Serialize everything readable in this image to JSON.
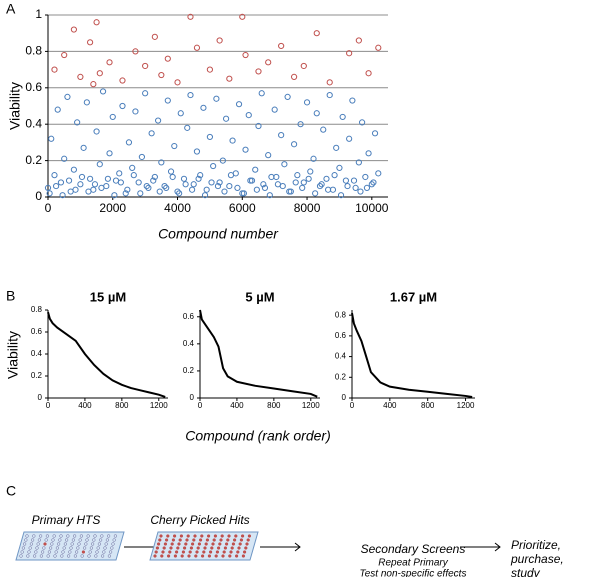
{
  "panel_labels": [
    "A",
    "B",
    "C"
  ],
  "chart_data": [
    {
      "type": "scatter",
      "y_label": "Viability",
      "x_label": "Compound number",
      "xlim": [
        0,
        10500
      ],
      "xticks": [
        0,
        2000,
        4000,
        6000,
        8000,
        10000
      ],
      "ylim": [
        0,
        1
      ],
      "yticks": [
        0,
        0.2,
        0.4,
        0.6,
        0.8,
        1
      ],
      "grid": true,
      "series": [
        {
          "color": "#4a7ebb",
          "x": [
            0,
            100,
            200,
            300,
            400,
            500,
            600,
            700,
            800,
            900,
            1000,
            1100,
            1200,
            1300,
            1400,
            1500,
            1600,
            1700,
            1800,
            1900,
            2000,
            2100,
            2200,
            2300,
            2400,
            2500,
            2600,
            2700,
            2800,
            2900,
            3000,
            3100,
            3200,
            3300,
            3400,
            3500,
            3600,
            3700,
            3800,
            3900,
            4000,
            4100,
            4200,
            4300,
            4400,
            4500,
            4600,
            4700,
            4800,
            4900,
            5000,
            5100,
            5200,
            5300,
            5400,
            5500,
            5600,
            5700,
            5800,
            5900,
            6000,
            6100,
            6200,
            6300,
            6400,
            6500,
            6600,
            6700,
            6800,
            6900,
            7000,
            7100,
            7200,
            7300,
            7400,
            7500,
            7600,
            7700,
            7800,
            7900,
            8000,
            8100,
            8200,
            8300,
            8400,
            8500,
            8600,
            8700,
            8800,
            8900,
            9000,
            9100,
            9200,
            9300,
            9400,
            9500,
            9600,
            9700,
            9800,
            9900,
            10000,
            10100,
            10200
          ],
          "values": [
            0.05,
            0.32,
            0.12,
            0.48,
            0.08,
            0.21,
            0.55,
            0.03,
            0.15,
            0.41,
            0.07,
            0.27,
            0.52,
            0.1,
            0.04,
            0.36,
            0.18,
            0.58,
            0.06,
            0.24,
            0.44,
            0.09,
            0.13,
            0.5,
            0.02,
            0.3,
            0.16,
            0.47,
            0.08,
            0.22,
            0.57,
            0.05,
            0.35,
            0.11,
            0.42,
            0.19,
            0.06,
            0.53,
            0.14,
            0.28,
            0.03,
            0.46,
            0.1,
            0.38,
            0.56,
            0.07,
            0.25,
            0.12,
            0.49,
            0.04,
            0.33,
            0.17,
            0.54,
            0.08,
            0.2,
            0.43,
            0.06,
            0.31,
            0.13,
            0.51,
            0.02,
            0.26,
            0.45,
            0.09,
            0.15,
            0.39,
            0.57,
            0.05,
            0.23,
            0.11,
            0.48,
            0.07,
            0.34,
            0.18,
            0.55,
            0.03,
            0.29,
            0.12,
            0.4,
            0.08,
            0.52,
            0.14,
            0.21,
            0.46,
            0.06,
            0.37,
            0.1,
            0.56,
            0.04,
            0.27,
            0.16,
            0.44,
            0.09,
            0.32,
            0.53,
            0.05,
            0.19,
            0.41,
            0.11,
            0.24,
            0.07,
            0.35,
            0.13
          ]
        },
        {
          "color": "#4a7ebb",
          "x": [
            50,
            250,
            450,
            650,
            850,
            1050,
            1250,
            1450,
            1650,
            1850,
            2050,
            2250,
            2450,
            2650,
            2850,
            3050,
            3250,
            3450,
            3650,
            3850,
            4050,
            4250,
            4450,
            4650,
            4850,
            5050,
            5250,
            5450,
            5650,
            5850,
            6050,
            6250,
            6450,
            6650,
            6850,
            7050,
            7250,
            7450,
            7650,
            7850,
            8050,
            8250,
            8450,
            8650,
            8850,
            9050,
            9250,
            9450,
            9650,
            9850,
            10050
          ],
          "values": [
            0.02,
            0.06,
            0.01,
            0.09,
            0.04,
            0.11,
            0.03,
            0.07,
            0.05,
            0.1,
            0.01,
            0.08,
            0.04,
            0.12,
            0.02,
            0.06,
            0.09,
            0.03,
            0.05,
            0.11,
            0.02,
            0.07,
            0.04,
            0.1,
            0.01,
            0.08,
            0.06,
            0.03,
            0.12,
            0.05,
            0.02,
            0.09,
            0.04,
            0.07,
            0.01,
            0.11,
            0.06,
            0.03,
            0.08,
            0.05,
            0.1,
            0.02,
            0.07,
            0.04,
            0.12,
            0.01,
            0.06,
            0.09,
            0.03,
            0.05,
            0.08
          ]
        },
        {
          "color": "#c0504d",
          "x": [
            200,
            500,
            800,
            1000,
            1300,
            1400,
            1500,
            1600,
            1900,
            2300,
            2700,
            3000,
            3300,
            3500,
            3700,
            4000,
            4400,
            4600,
            5000,
            5300,
            5600,
            6000,
            6100,
            6500,
            6800,
            7200,
            7600,
            7900,
            8300,
            8700,
            9300,
            9600,
            9900,
            10200
          ],
          "values": [
            0.7,
            0.78,
            0.92,
            0.66,
            0.85,
            0.62,
            0.96,
            0.68,
            0.74,
            0.64,
            0.8,
            0.72,
            0.88,
            0.67,
            0.76,
            0.63,
            0.99,
            0.82,
            0.7,
            0.86,
            0.65,
            0.99,
            0.78,
            0.69,
            0.74,
            0.83,
            0.66,
            0.72,
            0.9,
            0.63,
            0.79,
            0.86,
            0.68,
            0.82
          ]
        }
      ]
    },
    {
      "type": "line",
      "title": "15 µM",
      "color": "#000000",
      "xlim": [
        0,
        1300
      ],
      "xticks": [
        0,
        400,
        800,
        1200
      ],
      "ylim": [
        0,
        0.8
      ],
      "yticks": [
        0,
        0.2,
        0.4,
        0.6,
        0.8
      ],
      "x": [
        0,
        20,
        50,
        100,
        200,
        300,
        400,
        500,
        600,
        700,
        800,
        900,
        1000,
        1100,
        1200,
        1270
      ],
      "values": [
        0.78,
        0.72,
        0.68,
        0.64,
        0.58,
        0.52,
        0.4,
        0.3,
        0.22,
        0.16,
        0.12,
        0.09,
        0.07,
        0.05,
        0.03,
        0.01
      ]
    },
    {
      "type": "line",
      "title": "5 µM",
      "color": "#000000",
      "xlim": [
        0,
        1300
      ],
      "xticks": [
        0,
        400,
        800,
        1200
      ],
      "ylim": [
        0,
        0.65
      ],
      "yticks": [
        0,
        0.2,
        0.4,
        0.6
      ],
      "x": [
        0,
        20,
        50,
        100,
        150,
        200,
        250,
        300,
        400,
        600,
        800,
        1000,
        1200,
        1270
      ],
      "values": [
        0.65,
        0.58,
        0.55,
        0.5,
        0.45,
        0.38,
        0.22,
        0.16,
        0.12,
        0.09,
        0.07,
        0.05,
        0.03,
        0.01
      ]
    },
    {
      "type": "line",
      "title": "1.67 µM",
      "color": "#000000",
      "xlim": [
        0,
        1300
      ],
      "xticks": [
        0,
        400,
        800,
        1200
      ],
      "ylim": [
        0,
        0.85
      ],
      "yticks": [
        0,
        0.2,
        0.4,
        0.6,
        0.8
      ],
      "x": [
        0,
        20,
        50,
        100,
        150,
        200,
        300,
        400,
        600,
        800,
        1000,
        1200,
        1270
      ],
      "values": [
        0.82,
        0.72,
        0.65,
        0.55,
        0.4,
        0.25,
        0.15,
        0.11,
        0.08,
        0.06,
        0.04,
        0.02,
        0.01
      ]
    }
  ],
  "panel_b": {
    "y_label": "Viability",
    "x_label": "Compound (rank order)"
  },
  "workflow": {
    "primary": "Primary HTS",
    "cherry": "Cherry Picked Hits",
    "secondary": {
      "label": "Secondary Screens",
      "sublabels": [
        "Repeat Primary",
        "Test non-specific effects"
      ]
    },
    "final": [
      "Prioritize,",
      "purchase,",
      "study"
    ]
  }
}
